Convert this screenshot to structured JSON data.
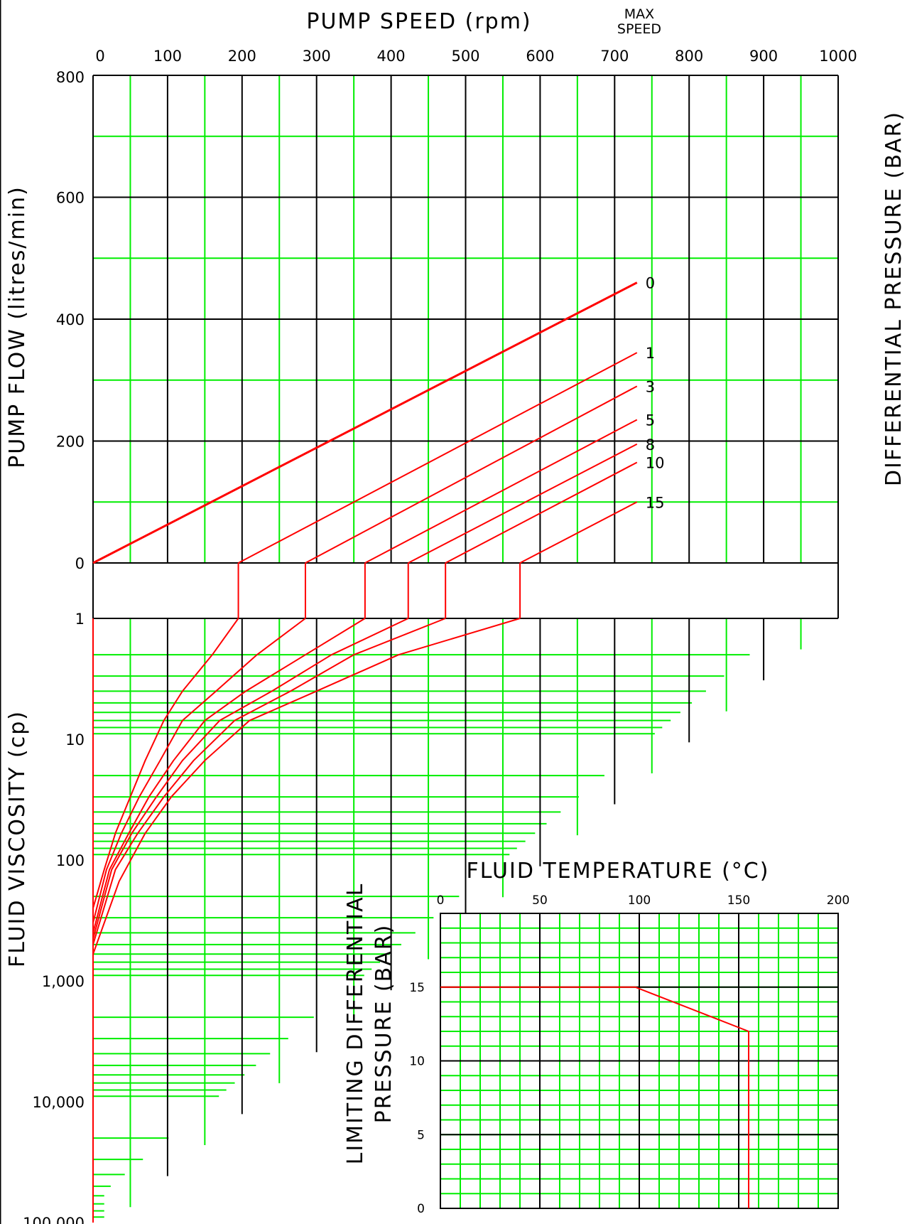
{
  "chart_data": [
    {
      "type": "line",
      "part": "pump-flow",
      "title": "PUMP SPEED (rpm)",
      "max_speed_label": [
        "MAX",
        "SPEED"
      ],
      "xlabel": "PUMP SPEED (rpm)",
      "ylabel": "PUMP FLOW (litres/min)",
      "right_label": "DIFFERENTIAL PRESSURE (BAR)",
      "xlim": [
        0,
        1000
      ],
      "ylim": [
        0,
        800
      ],
      "x_ticks": [
        "0",
        "100",
        "200",
        "300",
        "400",
        "500",
        "600",
        "700",
        "800",
        "900",
        "1000"
      ],
      "y_ticks": [
        "0",
        "200",
        "400",
        "600",
        "800"
      ],
      "grid": true,
      "max_speed_rpm": 730,
      "series": [
        {
          "name": "0",
          "x": [
            0,
            730
          ],
          "y": [
            0,
            460
          ]
        },
        {
          "name": "1",
          "x": [
            195,
            730
          ],
          "y": [
            0,
            345
          ]
        },
        {
          "name": "3",
          "x": [
            285,
            730
          ],
          "y": [
            0,
            290
          ]
        },
        {
          "name": "5",
          "x": [
            365,
            730
          ],
          "y": [
            0,
            235
          ]
        },
        {
          "name": "8",
          "x": [
            423,
            730
          ],
          "y": [
            0,
            195
          ]
        },
        {
          "name": "10",
          "x": [
            473,
            730
          ],
          "y": [
            0,
            165
          ]
        },
        {
          "name": "15",
          "x": [
            573,
            730
          ],
          "y": [
            0,
            100
          ]
        }
      ]
    },
    {
      "type": "line",
      "part": "fluid-viscosity",
      "ylabel": "FLUID VISCOSITY (cp)",
      "y_scale": "log",
      "ylim": [
        1,
        100000
      ],
      "y_ticks": [
        "1",
        "10",
        "100",
        "1,000",
        "10,000",
        "100,000"
      ],
      "grid": true,
      "series": [
        {
          "name": "0",
          "x": [
            0,
            0
          ],
          "y": [
            1,
            100000
          ]
        },
        {
          "name": "1",
          "x": [
            195,
            160,
            120,
            95,
            70,
            50,
            30,
            15,
            0
          ],
          "y": [
            1,
            2,
            4,
            7,
            15,
            30,
            60,
            120,
            250
          ]
        },
        {
          "name": "3",
          "x": [
            285,
            220,
            165,
            120,
            90,
            62,
            38,
            18,
            0
          ],
          "y": [
            1,
            2,
            4,
            7,
            15,
            30,
            60,
            120,
            330
          ]
        },
        {
          "name": "5",
          "x": [
            365,
            285,
            205,
            150,
            108,
            75,
            48,
            22,
            0
          ],
          "y": [
            1,
            2,
            4,
            7,
            15,
            30,
            60,
            120,
            400
          ]
        },
        {
          "name": "8",
          "x": [
            423,
            320,
            240,
            170,
            120,
            85,
            52,
            25,
            0
          ],
          "y": [
            1,
            2,
            4,
            7,
            15,
            30,
            60,
            120,
            450
          ]
        },
        {
          "name": "10",
          "x": [
            473,
            350,
            265,
            190,
            135,
            95,
            60,
            30,
            0
          ],
          "y": [
            1,
            2,
            4,
            7,
            15,
            30,
            60,
            120,
            500
          ]
        },
        {
          "name": "15",
          "x": [
            573,
            410,
            300,
            210,
            150,
            105,
            70,
            35,
            0
          ],
          "y": [
            1,
            2,
            4,
            7,
            15,
            30,
            60,
            150,
            600
          ]
        }
      ]
    },
    {
      "type": "line",
      "part": "limiting-pressure",
      "title": "FLUID TEMPERATURE (°C)",
      "ylabel": [
        "LIMITING DIFFERENTIAL",
        "PRESSURE (BAR)"
      ],
      "xlim": [
        0,
        200
      ],
      "ylim": [
        0,
        20
      ],
      "x_ticks": [
        "0",
        "50",
        "100",
        "150",
        "200"
      ],
      "y_ticks": [
        "0",
        "5",
        "10",
        "15"
      ],
      "grid": true,
      "series": [
        {
          "x": [
            0,
            98,
            155,
            155
          ],
          "y": [
            15,
            15,
            12,
            0
          ]
        }
      ]
    }
  ],
  "colors": {
    "curve": "#ff0000",
    "grid_minor": "#00ee00",
    "grid_major": "#000000"
  }
}
